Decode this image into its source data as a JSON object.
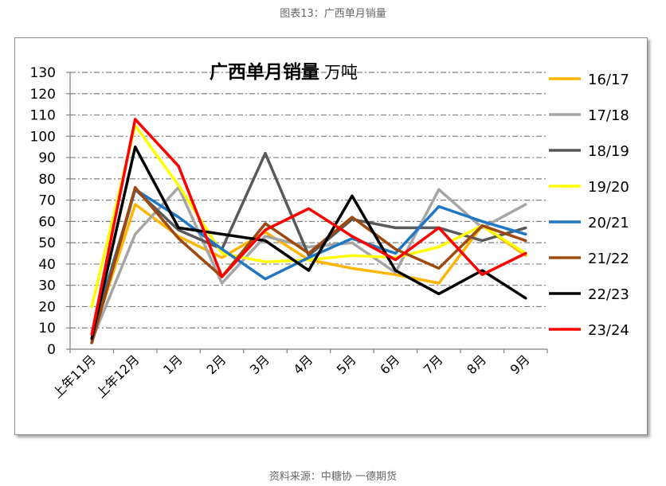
{
  "figure_caption": "图表13：广西单月销量",
  "source_note": "资料来源：中糖协  一德期货",
  "chart_data": {
    "type": "line",
    "title": "广西单月销量",
    "unit": "万吨",
    "categories": [
      "上年11月",
      "上年12月",
      "1月",
      "2月",
      "3月",
      "4月",
      "5月",
      "6月",
      "7月",
      "8月",
      "9月"
    ],
    "ylim": [
      0,
      130
    ],
    "yticks": [
      0,
      10,
      20,
      30,
      40,
      50,
      60,
      70,
      80,
      90,
      100,
      110,
      120,
      130
    ],
    "grid": true,
    "grid_style": "dash-dot",
    "legend_position": "right",
    "series": [
      {
        "name": "16/17",
        "color": "#FFB400",
        "values": [
          5,
          68,
          53,
          43,
          55,
          42,
          38,
          35,
          31,
          58,
          44
        ]
      },
      {
        "name": "17/18",
        "color": "#A5A5A5",
        "values": [
          4,
          54,
          76,
          31,
          53,
          48,
          50,
          36,
          75,
          57,
          68
        ]
      },
      {
        "name": "18/19",
        "color": "#595959",
        "values": [
          3,
          75,
          56,
          47,
          92,
          44,
          61,
          57,
          57,
          51,
          57
        ]
      },
      {
        "name": "19/20",
        "color": "#FFFF00",
        "values": [
          20,
          105,
          77,
          45,
          41,
          42,
          44,
          43,
          48,
          58,
          45
        ]
      },
      {
        "name": "20/21",
        "color": "#1F77C4",
        "values": [
          7,
          75,
          62,
          47,
          33,
          43,
          52,
          45,
          67,
          60,
          54
        ]
      },
      {
        "name": "21/22",
        "color": "#9E480E",
        "values": [
          3,
          76,
          52,
          34,
          59,
          45,
          62,
          47,
          38,
          58,
          51
        ]
      },
      {
        "name": "22/23",
        "color": "#000000",
        "values": [
          5,
          95,
          57,
          54,
          51,
          37,
          72,
          37,
          26,
          37,
          24
        ]
      },
      {
        "name": "23/24",
        "color": "#FF0000",
        "values": [
          7,
          108,
          86,
          34,
          56,
          66,
          53,
          42,
          57,
          35,
          45
        ]
      }
    ]
  }
}
